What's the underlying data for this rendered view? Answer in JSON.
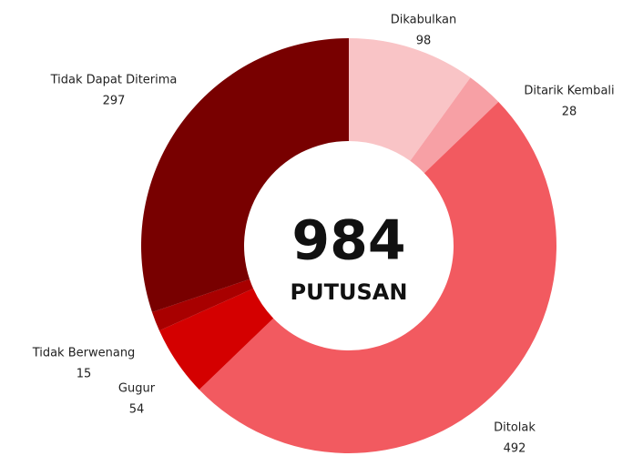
{
  "chart_data": {
    "type": "donut",
    "categories": [
      "Dikabulkan",
      "Ditarik Kembali",
      "Ditolak",
      "Gugur",
      "Tidak Berwenang",
      "Tidak Dapat Diterima"
    ],
    "values": [
      98,
      28,
      492,
      54,
      15,
      297
    ],
    "colors": [
      "#f9c4c6",
      "#f7a0a5",
      "#f25a60",
      "#d40000",
      "#a80000",
      "#780000"
    ],
    "total": 984,
    "center_label": "PUTUSAN"
  }
}
